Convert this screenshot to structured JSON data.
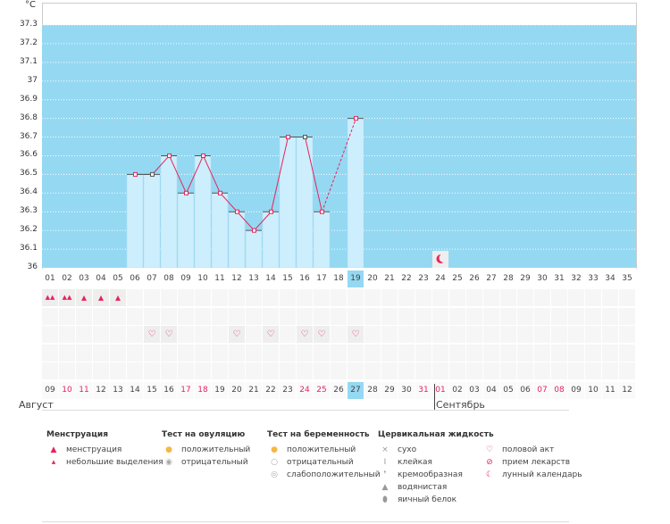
{
  "chart_data": {
    "type": "bar",
    "unit": "°C",
    "ylim": [
      36,
      37.3
    ],
    "yticks": [
      "36",
      "36.1",
      "36.2",
      "36.3",
      "36.4",
      "36.5",
      "36.6",
      "36.7",
      "36.8",
      "36.9",
      "37",
      "37.1",
      "37.2",
      "37.3"
    ],
    "cycle_days": [
      "01",
      "02",
      "03",
      "04",
      "05",
      "06",
      "07",
      "08",
      "09",
      "10",
      "11",
      "12",
      "13",
      "14",
      "15",
      "16",
      "17",
      "18",
      "19",
      "20",
      "21",
      "22",
      "23",
      "24",
      "25",
      "26",
      "27",
      "28",
      "29",
      "30",
      "31",
      "32",
      "33",
      "34",
      "35"
    ],
    "values": [
      null,
      null,
      null,
      null,
      null,
      36.5,
      36.5,
      36.6,
      36.4,
      36.6,
      36.4,
      36.3,
      36.2,
      36.3,
      36.7,
      36.7,
      36.3,
      null,
      36.8,
      null,
      null,
      null,
      null,
      null,
      null,
      null,
      null,
      null,
      null,
      null,
      null,
      null,
      null,
      null,
      null
    ],
    "dashed_segments": [
      [
        17,
        19
      ]
    ],
    "current_day": 19,
    "moon_day": 24,
    "dates": [
      "09",
      "10",
      "11",
      "12",
      "13",
      "14",
      "15",
      "16",
      "17",
      "18",
      "19",
      "20",
      "21",
      "22",
      "23",
      "24",
      "25",
      "26",
      "27",
      "28",
      "29",
      "30",
      "31",
      "01",
      "02",
      "03",
      "04",
      "05",
      "06",
      "07",
      "08",
      "09",
      "10",
      "11",
      "12"
    ],
    "red_dates": [
      2,
      3,
      9,
      10,
      16,
      17,
      23,
      24,
      30,
      31
    ],
    "menstruation": {
      "1": "heavy",
      "2": "heavy",
      "3": "light",
      "4": "light",
      "5": "light"
    },
    "intercourse_days": [
      7,
      8,
      12,
      14,
      16,
      17,
      19
    ],
    "months": [
      "Август",
      "Сентябрь"
    ],
    "colors": {
      "bar": "#cdeefc",
      "bg": "#95d8f2",
      "line": "#e8235b",
      "marker": "#e8235b"
    }
  },
  "legend": [
    {
      "title": "Менструация",
      "items": [
        {
          "icon": "drops",
          "label": "менструация"
        },
        {
          "icon": "drop",
          "label": "небольшие выделения"
        }
      ]
    },
    {
      "title": "Тест на овуляцию",
      "items": [
        {
          "icon": "●",
          "label": "положительный"
        },
        {
          "icon": "◉",
          "label": "отрицательный"
        }
      ]
    },
    {
      "title": "Тест на беременность",
      "items": [
        {
          "icon": "●",
          "label": "положительный"
        },
        {
          "icon": "○",
          "label": "отрицательный"
        },
        {
          "icon": "◎",
          "label": "слабоположительный"
        }
      ]
    },
    {
      "title": "Цервикальная жидкость",
      "items": [
        {
          "icon": "×",
          "label": "сухо"
        },
        {
          "icon": "I",
          "label": "клейкая"
        },
        {
          "icon": "❜",
          "label": "кремообразная"
        },
        {
          "icon": "▲",
          "label": "водянистая"
        },
        {
          "icon": "⬮",
          "label": "яичный белок"
        }
      ]
    },
    {
      "title": "",
      "items": [
        {
          "icon": "♡",
          "label": "половой акт"
        },
        {
          "icon": "⊘",
          "label": "прием лекарств"
        },
        {
          "icon": "☾",
          "label": "лунный календарь"
        }
      ]
    }
  ]
}
